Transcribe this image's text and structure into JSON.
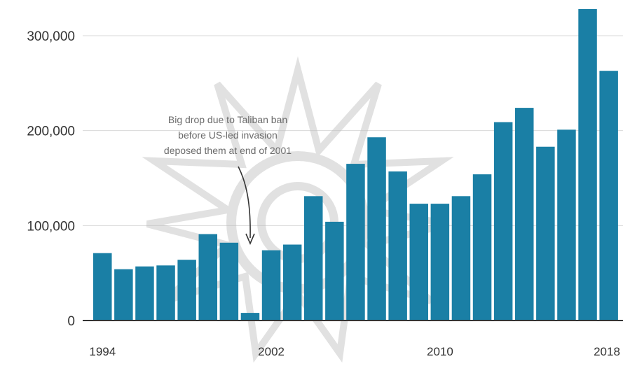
{
  "chart_data": {
    "type": "bar",
    "categories": [
      "1994",
      "1995",
      "1996",
      "1997",
      "1998",
      "1999",
      "2000",
      "2001",
      "2002",
      "2003",
      "2004",
      "2005",
      "2006",
      "2007",
      "2008",
      "2009",
      "2010",
      "2011",
      "2012",
      "2013",
      "2014",
      "2015",
      "2016",
      "2017",
      "2018"
    ],
    "values": [
      71000,
      54000,
      57000,
      58000,
      64000,
      91000,
      82000,
      8000,
      74000,
      80000,
      131000,
      104000,
      165000,
      193000,
      157000,
      123000,
      123000,
      131000,
      154000,
      209000,
      224000,
      183000,
      201000,
      328000,
      263000
    ],
    "title": "",
    "xlabel": "",
    "ylabel": "",
    "ylim": [
      0,
      328000
    ],
    "y_ticks": [
      {
        "value": 0,
        "label": "0"
      },
      {
        "value": 100000,
        "label": "100,000"
      },
      {
        "value": 200000,
        "label": "200,000"
      },
      {
        "value": 300000,
        "label": "300,000"
      }
    ],
    "x_tick_labels": [
      {
        "category": "1994",
        "label": "1994"
      },
      {
        "category": "2002",
        "label": "2002"
      },
      {
        "category": "2010",
        "label": "2010"
      },
      {
        "category": "2018",
        "label": "2018"
      }
    ],
    "grid": true,
    "bar_color": "#1a7fa5",
    "annotation": {
      "lines": [
        "Big drop due to Taliban ban",
        "before US-led invasion",
        "deposed them at end of 2001"
      ],
      "target_category": "2001"
    }
  }
}
